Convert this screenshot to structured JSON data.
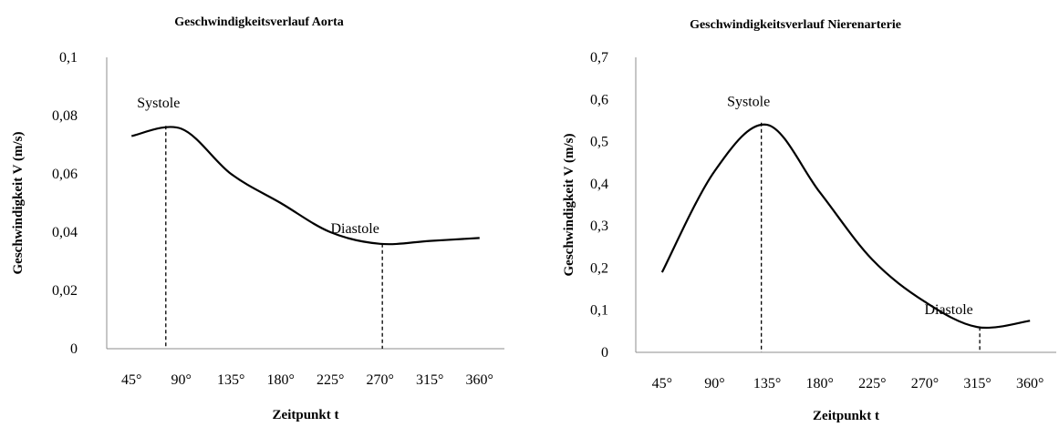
{
  "chart_data": [
    {
      "type": "line",
      "title": "Geschwindigkeitsverlauf Aorta",
      "xlabel": "Zeitpunkt t",
      "ylabel": "Geschwindigkeit V (m/s)",
      "categories": [
        "45°",
        "90°",
        "135°",
        "180°",
        "225°",
        "270°",
        "315°",
        "360°"
      ],
      "x": [
        45,
        90,
        135,
        180,
        225,
        270,
        315,
        360
      ],
      "y_ticks": [
        "0",
        "0,02",
        "0,04",
        "0,06",
        "0,08",
        "0,1"
      ],
      "ylim": [
        0,
        0.1
      ],
      "grid": false,
      "series": [
        {
          "values": [
            0.073,
            0.0755,
            0.06,
            0.05,
            0.04,
            0.036,
            0.037,
            0.038
          ],
          "color": "#000000"
        }
      ],
      "annotations": [
        {
          "text": "Systole",
          "x": 76,
          "y": 0.0765
        },
        {
          "text": "Diastole",
          "x": 272,
          "y": 0.036
        }
      ]
    },
    {
      "type": "line",
      "title": "Geschwindigkeitsverlauf Nierenarterie",
      "xlabel": "Zeitpunkt t",
      "ylabel": "Geschwindigkeit V (m/s)",
      "categories": [
        "45°",
        "90°",
        "135°",
        "180°",
        "225°",
        "270°",
        "315°",
        "360°"
      ],
      "x": [
        45,
        90,
        135,
        180,
        225,
        270,
        315,
        360
      ],
      "y_ticks": [
        "0",
        "0,1",
        "0,2",
        "0,3",
        "0,4",
        "0,5",
        "0,6",
        "0,7"
      ],
      "ylim": [
        0,
        0.7
      ],
      "grid": false,
      "series": [
        {
          "values": [
            0.19,
            0.43,
            0.54,
            0.38,
            0.22,
            0.12,
            0.06,
            0.075
          ],
          "color": "#000000"
        }
      ],
      "annotations": [
        {
          "text": "Systole",
          "x": 130,
          "y": 0.545
        },
        {
          "text": "Diastole",
          "x": 317,
          "y": 0.06
        }
      ]
    }
  ]
}
